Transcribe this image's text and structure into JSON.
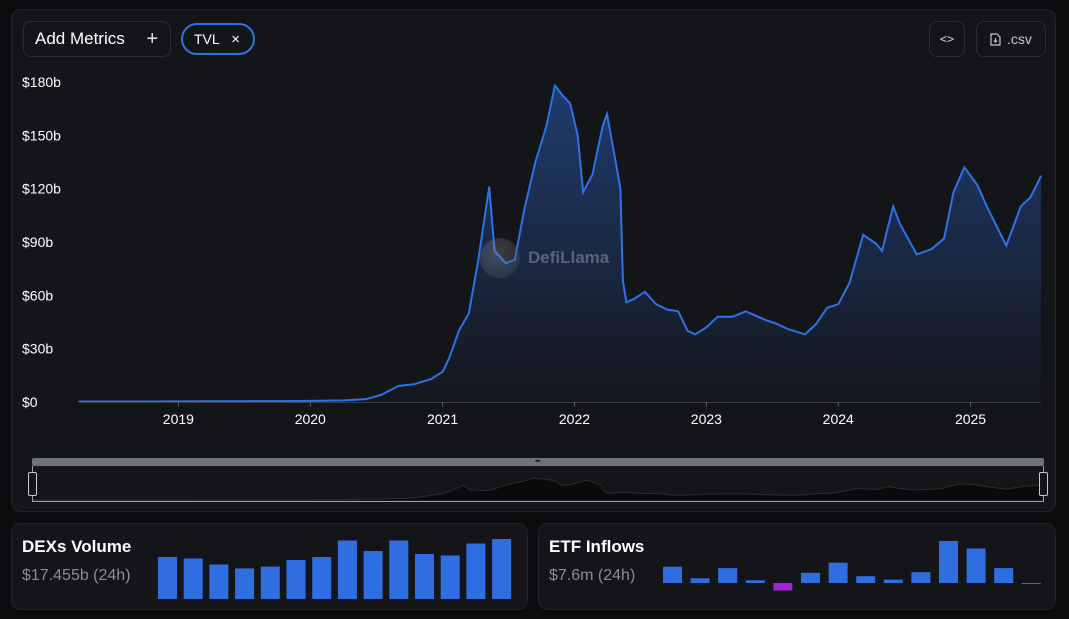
{
  "toolbar": {
    "add_metrics_label": "Add Metrics",
    "plus_icon": "+",
    "active_metric_label": "TVL",
    "remove_icon": "×",
    "embed_label": "<>",
    "csv_label": ".csv"
  },
  "watermark": {
    "text": "DefiLlama"
  },
  "colors": {
    "line": "#2f72e6",
    "bar": "#2f6ee0",
    "negative_bar": "#a024d6",
    "background": "#141518"
  },
  "chart_data": {
    "type": "area",
    "series": [
      {
        "values": [
          [
            "2018-04-01",
            0.3
          ],
          [
            "2018-10-01",
            0.3
          ],
          [
            "2019-04-01",
            0.4
          ],
          [
            "2019-10-01",
            0.5
          ],
          [
            "2020-01-01",
            0.6
          ],
          [
            "2020-04-01",
            0.9
          ],
          [
            "2020-06-01",
            1.5
          ],
          [
            "2020-07-15",
            4
          ],
          [
            "2020-09-01",
            9
          ],
          [
            "2020-10-15",
            10
          ],
          [
            "2020-12-01",
            13
          ],
          [
            "2021-01-01",
            17
          ],
          [
            "2021-01-20",
            25
          ],
          [
            "2021-02-15",
            40
          ],
          [
            "2021-03-15",
            50
          ],
          [
            "2021-04-10",
            80
          ],
          [
            "2021-05-10",
            121
          ],
          [
            "2021-05-25",
            85
          ],
          [
            "2021-06-25",
            78
          ],
          [
            "2021-07-20",
            80
          ],
          [
            "2021-08-15",
            108
          ],
          [
            "2021-09-15",
            135
          ],
          [
            "2021-10-15",
            155
          ],
          [
            "2021-11-08",
            178
          ],
          [
            "2021-12-01",
            172
          ],
          [
            "2021-12-20",
            168
          ],
          [
            "2022-01-10",
            150
          ],
          [
            "2022-01-25",
            118
          ],
          [
            "2022-02-20",
            128
          ],
          [
            "2022-03-20",
            155
          ],
          [
            "2022-04-01",
            162
          ],
          [
            "2022-04-25",
            135
          ],
          [
            "2022-05-08",
            120
          ],
          [
            "2022-05-15",
            68
          ],
          [
            "2022-05-25",
            56
          ],
          [
            "2022-06-15",
            58
          ],
          [
            "2022-07-15",
            62
          ],
          [
            "2022-08-15",
            55
          ],
          [
            "2022-09-15",
            52
          ],
          [
            "2022-10-15",
            51
          ],
          [
            "2022-11-10",
            40
          ],
          [
            "2022-12-01",
            38
          ],
          [
            "2023-01-01",
            42
          ],
          [
            "2023-02-01",
            48
          ],
          [
            "2023-03-15",
            48
          ],
          [
            "2023-04-20",
            51
          ],
          [
            "2023-06-15",
            46
          ],
          [
            "2023-07-15",
            44
          ],
          [
            "2023-08-15",
            41
          ],
          [
            "2023-10-01",
            38
          ],
          [
            "2023-11-01",
            44
          ],
          [
            "2023-12-01",
            53
          ],
          [
            "2024-01-01",
            55
          ],
          [
            "2024-02-01",
            67
          ],
          [
            "2024-03-10",
            94
          ],
          [
            "2024-04-15",
            89
          ],
          [
            "2024-05-01",
            85
          ],
          [
            "2024-06-01",
            110
          ],
          [
            "2024-06-20",
            100
          ],
          [
            "2024-08-05",
            83
          ],
          [
            "2024-09-15",
            86
          ],
          [
            "2024-10-20",
            92
          ],
          [
            "2024-11-15",
            118
          ],
          [
            "2024-12-15",
            132
          ],
          [
            "2025-01-20",
            122
          ],
          [
            "2025-02-15",
            110
          ],
          [
            "2025-04-10",
            88
          ],
          [
            "2025-05-20",
            110
          ],
          [
            "2025-06-15",
            115
          ],
          [
            "2025-07-15",
            127
          ]
        ]
      }
    ],
    "xlabel": "",
    "ylabel": "",
    "xlim": [
      "2018-04-01",
      "2025-07-15"
    ],
    "ylim": [
      0,
      180
    ],
    "x_ticks": [
      "2019",
      "2020",
      "2021",
      "2022",
      "2023",
      "2024",
      "2025"
    ],
    "y_ticks": [
      {
        "value": 0,
        "label": "$0"
      },
      {
        "value": 30,
        "label": "$30b"
      },
      {
        "value": 60,
        "label": "$60b"
      },
      {
        "value": 90,
        "label": "$90b"
      },
      {
        "value": 120,
        "label": "$120b"
      },
      {
        "value": 150,
        "label": "$150b"
      },
      {
        "value": 180,
        "label": "$180b"
      }
    ],
    "grid": false,
    "legend": "none"
  },
  "dex_volume": {
    "title": "DEXs Volume",
    "value": "$17.455b (24h)",
    "bars": [
      14,
      13.5,
      11.5,
      10.2,
      10.8,
      13,
      14,
      19.5,
      16,
      19.5,
      15,
      14.5,
      18.5,
      20
    ]
  },
  "etf_inflows": {
    "title": "ETF Inflows",
    "value": "$7.6m (24h)",
    "bars": [
      12,
      3.5,
      11,
      2,
      -5.5,
      7.5,
      15,
      5,
      2.5,
      8,
      31,
      25.5,
      11,
      0
    ]
  }
}
